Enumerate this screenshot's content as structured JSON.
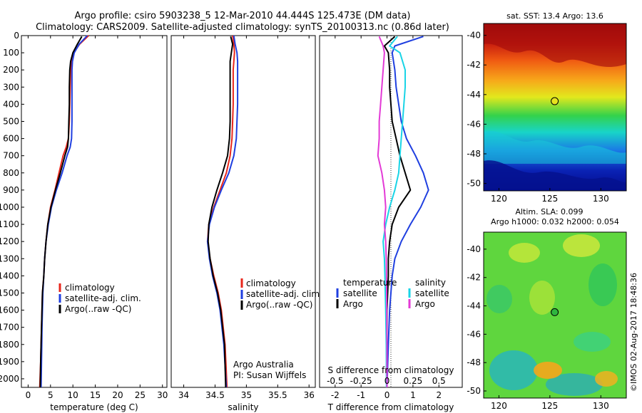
{
  "header": {
    "title_line1": "Argo profile: csiro 5903238_5 12-Mar-2010 44.444S 125.473E (DM data)",
    "title_line2": "Climatology: CARS2009. Satellite-adjusted climatology: synTS_20100313.nc (0.86d later)"
  },
  "colors": {
    "climatology": "#e8261b",
    "satellite": "#1f3fe0",
    "argo": "#000000",
    "satellite_salinity": "#19d4e6",
    "argo_salinity": "#e33ad6"
  },
  "chart_data": [
    {
      "id": "temperature",
      "type": "line",
      "xlabel": "temperature (deg C)",
      "ylabel": "",
      "xlim": [
        -1.5,
        31
      ],
      "ylim": [
        2050,
        0
      ],
      "xticks": [
        0,
        5,
        10,
        15,
        20,
        25,
        30
      ],
      "yticks": [
        0,
        100,
        200,
        300,
        400,
        500,
        600,
        700,
        800,
        900,
        1000,
        1100,
        1200,
        1300,
        1400,
        1500,
        1600,
        1700,
        1800,
        1900,
        2000
      ],
      "legend": [
        "climatology",
        "satellite-adj. clim.",
        "Argo(..raw -QC)"
      ],
      "series": [
        {
          "name": "climatology",
          "color": "#e8261b",
          "x": [
            13.5,
            11.5,
            10.2,
            9.7,
            9.5,
            9.4,
            9.3,
            9.2,
            9.0,
            8.5,
            7.8,
            6.9,
            6.0,
            5.0,
            4.4,
            4.0,
            3.7,
            3.5,
            3.2,
            3.0,
            2.8,
            2.6
          ],
          "y": [
            0,
            50,
            100,
            150,
            200,
            300,
            400,
            500,
            600,
            650,
            700,
            800,
            900,
            1000,
            1100,
            1200,
            1300,
            1400,
            1500,
            1700,
            1900,
            2050
          ]
        },
        {
          "name": "satellite-adj. clim.",
          "color": "#1f3fe0",
          "x": [
            13.2,
            11.4,
            10.3,
            9.9,
            9.8,
            9.8,
            9.8,
            9.8,
            9.7,
            9.4,
            8.7,
            7.6,
            6.3,
            5.2,
            4.5,
            4.0,
            3.7,
            3.5,
            3.3,
            3.1,
            3.0,
            2.9
          ],
          "y": [
            0,
            50,
            100,
            150,
            200,
            300,
            400,
            500,
            600,
            650,
            700,
            800,
            900,
            1000,
            1100,
            1200,
            1300,
            1400,
            1500,
            1700,
            1900,
            2050
          ]
        },
        {
          "name": "Argo(..raw -QC)",
          "color": "#000000",
          "x": [
            12.0,
            11.0,
            10.0,
            9.5,
            9.3,
            9.2,
            9.2,
            9.1,
            9.0,
            8.8,
            8.2,
            7.2,
            6.1,
            5.1,
            4.4,
            4.0,
            3.7,
            3.5,
            3.2,
            3.0,
            2.8,
            2.7
          ],
          "y": [
            5,
            50,
            100,
            150,
            200,
            300,
            400,
            500,
            600,
            650,
            700,
            800,
            900,
            1000,
            1100,
            1200,
            1300,
            1400,
            1500,
            1700,
            1900,
            2050
          ]
        }
      ]
    },
    {
      "id": "salinity",
      "type": "line",
      "xlabel": "salinity",
      "ylabel": "",
      "xlim": [
        33.8,
        36.1
      ],
      "ylim": [
        2050,
        0
      ],
      "xticks": [
        34,
        34.5,
        35,
        35.5,
        36
      ],
      "legend": [
        "climatology",
        "satellite-adj. clim.",
        "Argo(..raw -QC)"
      ],
      "annotation_line1": "Argo Australia",
      "annotation_line2": "PI: Susan Wijffels",
      "series": [
        {
          "name": "climatology",
          "color": "#e8261b",
          "x": [
            34.78,
            34.8,
            34.81,
            34.8,
            34.79,
            34.79,
            34.79,
            34.78,
            34.77,
            34.74,
            34.68,
            34.58,
            34.48,
            34.4,
            34.38,
            34.42,
            34.48,
            34.55,
            34.6,
            34.66,
            34.69
          ],
          "y": [
            0,
            50,
            100,
            150,
            200,
            300,
            400,
            500,
            600,
            700,
            800,
            900,
            1000,
            1100,
            1200,
            1300,
            1400,
            1500,
            1600,
            1800,
            2050
          ]
        },
        {
          "name": "satellite-adj. clim.",
          "color": "#1f3fe0",
          "x": [
            34.8,
            34.82,
            34.85,
            34.86,
            34.86,
            34.86,
            34.86,
            34.85,
            34.84,
            34.8,
            34.72,
            34.6,
            34.49,
            34.41,
            34.38,
            34.41,
            34.46,
            34.53,
            34.58,
            34.64,
            34.68
          ],
          "y": [
            0,
            50,
            100,
            150,
            200,
            300,
            400,
            500,
            600,
            700,
            800,
            900,
            1000,
            1100,
            1200,
            1300,
            1400,
            1500,
            1600,
            1800,
            2050
          ]
        },
        {
          "name": "Argo(..raw -QC)",
          "color": "#000000",
          "x": [
            34.75,
            34.78,
            34.76,
            34.74,
            34.74,
            34.74,
            34.74,
            34.74,
            34.73,
            34.7,
            34.62,
            34.53,
            34.45,
            34.4,
            34.39,
            34.42,
            34.47,
            34.54,
            34.59,
            34.65,
            34.67
          ],
          "y": [
            5,
            50,
            100,
            150,
            200,
            300,
            400,
            500,
            600,
            700,
            800,
            900,
            1000,
            1100,
            1200,
            1300,
            1400,
            1500,
            1600,
            1800,
            2050
          ]
        }
      ]
    },
    {
      "id": "difference",
      "type": "line",
      "xlabel": "T difference from climatology",
      "xlabel_top": "S difference from climatology",
      "xlim": [
        -2.6,
        2.9
      ],
      "ylim": [
        2050,
        0
      ],
      "xticks": [
        -2,
        -1,
        0,
        1,
        2
      ],
      "top_tick_labels": [
        "-0.5",
        "-0.25",
        "0",
        "0.25",
        "0.5"
      ],
      "top_tick_positions": [
        -2,
        -1,
        0,
        1,
        2
      ],
      "legend_headers": [
        "temperature",
        "salinity"
      ],
      "legend_entries": [
        "satellite",
        "Argo",
        "satellite",
        "Argo"
      ],
      "series": [
        {
          "name": "temperature satellite",
          "color": "#1f3fe0",
          "x": [
            1.4,
            0.3,
            0.2,
            0.3,
            0.35,
            0.45,
            0.55,
            0.75,
            1.1,
            1.4,
            1.6,
            1.3,
            0.9,
            0.55,
            0.3,
            0.2,
            0.1,
            0.05,
            0.0
          ],
          "y": [
            5,
            60,
            100,
            200,
            300,
            400,
            500,
            600,
            700,
            800,
            900,
            1000,
            1100,
            1200,
            1300,
            1400,
            1600,
            1800,
            2050
          ]
        },
        {
          "name": "temperature Argo",
          "color": "#000000",
          "x": [
            0.3,
            -0.1,
            0.05,
            0.1,
            0.1,
            0.15,
            0.2,
            0.35,
            0.5,
            0.7,
            0.9,
            0.45,
            0.2,
            0.1,
            0.05,
            0.05,
            0.0,
            0.0,
            0.0
          ],
          "y": [
            5,
            60,
            100,
            200,
            300,
            400,
            500,
            600,
            700,
            800,
            900,
            1000,
            1100,
            1200,
            1300,
            1400,
            1600,
            1800,
            2050
          ]
        },
        {
          "name": "salinity satellite",
          "color": "#19d4e6",
          "x": [
            0.4,
            0.1,
            0.5,
            0.7,
            0.7,
            0.65,
            0.6,
            0.55,
            0.5,
            0.45,
            0.3,
            0.1,
            -0.05,
            -0.15,
            -0.1,
            -0.08,
            -0.05,
            -0.03,
            -0.02
          ],
          "y": [
            5,
            60,
            100,
            200,
            300,
            400,
            500,
            600,
            700,
            800,
            900,
            1000,
            1100,
            1200,
            1300,
            1400,
            1600,
            1800,
            2050
          ]
        },
        {
          "name": "salinity Argo",
          "color": "#e33ad6",
          "x": [
            -0.3,
            -0.15,
            -0.1,
            -0.15,
            -0.2,
            -0.25,
            -0.3,
            -0.3,
            -0.35,
            -0.2,
            -0.1,
            -0.05,
            -0.1,
            -0.05,
            -0.03,
            -0.02,
            -0.01,
            0.0,
            0.0
          ],
          "y": [
            5,
            60,
            100,
            200,
            300,
            400,
            500,
            600,
            700,
            800,
            900,
            1000,
            1100,
            1200,
            1300,
            1400,
            1600,
            1800,
            2050
          ]
        }
      ]
    },
    {
      "id": "sst_map",
      "type": "heatmap",
      "title": "sat. SST: 13.4  Argo: 13.6",
      "xlim": [
        118.5,
        132.5
      ],
      "ylim": [
        -50.5,
        -39.2
      ],
      "xticks": [
        120,
        125,
        130
      ],
      "yticks": [
        -40,
        -42,
        -44,
        -46,
        -48,
        -50
      ],
      "marker": {
        "lon": 125.473,
        "lat": -44.444
      }
    },
    {
      "id": "sla_map",
      "type": "heatmap",
      "title_line1": "Altim. SLA: 0.099",
      "title_line2": "Argo h1000: 0.032  h2000: 0.054",
      "xlim": [
        118.5,
        132.5
      ],
      "ylim": [
        -50.5,
        -38.8
      ],
      "xticks": [
        120,
        125,
        130
      ],
      "yticks": [
        -40,
        -42,
        -44,
        -46,
        -48,
        -50
      ],
      "marker": {
        "lon": 125.473,
        "lat": -44.444
      }
    }
  ],
  "credit": "©IMOS 02-Aug-2017 18:48:36"
}
